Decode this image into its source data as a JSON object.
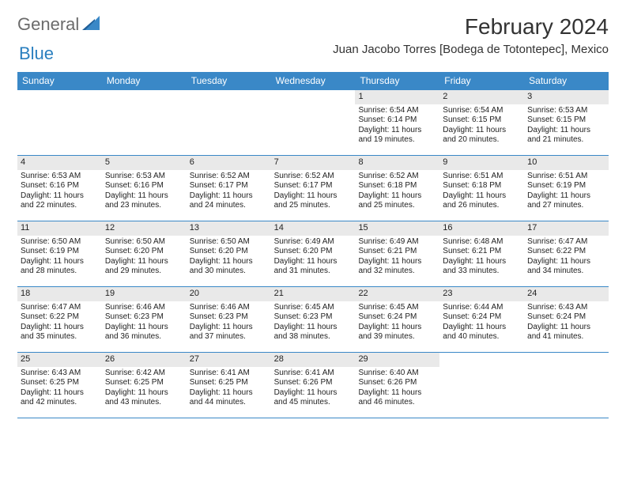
{
  "logo": {
    "textA": "General",
    "textB": "Blue"
  },
  "title": "February 2024",
  "location": "Juan Jacobo Torres [Bodega de Totontepec], Mexico",
  "colors": {
    "headerBg": "#3a88c7",
    "headerText": "#ffffff",
    "daynumBg": "#e9e9e9",
    "border": "#3a88c7"
  },
  "dayNames": [
    "Sunday",
    "Monday",
    "Tuesday",
    "Wednesday",
    "Thursday",
    "Friday",
    "Saturday"
  ],
  "weeks": [
    [
      null,
      null,
      null,
      null,
      {
        "n": "1",
        "sunrise": "Sunrise: 6:54 AM",
        "sunset": "Sunset: 6:14 PM",
        "day": "Daylight: 11 hours and 19 minutes."
      },
      {
        "n": "2",
        "sunrise": "Sunrise: 6:54 AM",
        "sunset": "Sunset: 6:15 PM",
        "day": "Daylight: 11 hours and 20 minutes."
      },
      {
        "n": "3",
        "sunrise": "Sunrise: 6:53 AM",
        "sunset": "Sunset: 6:15 PM",
        "day": "Daylight: 11 hours and 21 minutes."
      }
    ],
    [
      {
        "n": "4",
        "sunrise": "Sunrise: 6:53 AM",
        "sunset": "Sunset: 6:16 PM",
        "day": "Daylight: 11 hours and 22 minutes."
      },
      {
        "n": "5",
        "sunrise": "Sunrise: 6:53 AM",
        "sunset": "Sunset: 6:16 PM",
        "day": "Daylight: 11 hours and 23 minutes."
      },
      {
        "n": "6",
        "sunrise": "Sunrise: 6:52 AM",
        "sunset": "Sunset: 6:17 PM",
        "day": "Daylight: 11 hours and 24 minutes."
      },
      {
        "n": "7",
        "sunrise": "Sunrise: 6:52 AM",
        "sunset": "Sunset: 6:17 PM",
        "day": "Daylight: 11 hours and 25 minutes."
      },
      {
        "n": "8",
        "sunrise": "Sunrise: 6:52 AM",
        "sunset": "Sunset: 6:18 PM",
        "day": "Daylight: 11 hours and 25 minutes."
      },
      {
        "n": "9",
        "sunrise": "Sunrise: 6:51 AM",
        "sunset": "Sunset: 6:18 PM",
        "day": "Daylight: 11 hours and 26 minutes."
      },
      {
        "n": "10",
        "sunrise": "Sunrise: 6:51 AM",
        "sunset": "Sunset: 6:19 PM",
        "day": "Daylight: 11 hours and 27 minutes."
      }
    ],
    [
      {
        "n": "11",
        "sunrise": "Sunrise: 6:50 AM",
        "sunset": "Sunset: 6:19 PM",
        "day": "Daylight: 11 hours and 28 minutes."
      },
      {
        "n": "12",
        "sunrise": "Sunrise: 6:50 AM",
        "sunset": "Sunset: 6:20 PM",
        "day": "Daylight: 11 hours and 29 minutes."
      },
      {
        "n": "13",
        "sunrise": "Sunrise: 6:50 AM",
        "sunset": "Sunset: 6:20 PM",
        "day": "Daylight: 11 hours and 30 minutes."
      },
      {
        "n": "14",
        "sunrise": "Sunrise: 6:49 AM",
        "sunset": "Sunset: 6:20 PM",
        "day": "Daylight: 11 hours and 31 minutes."
      },
      {
        "n": "15",
        "sunrise": "Sunrise: 6:49 AM",
        "sunset": "Sunset: 6:21 PM",
        "day": "Daylight: 11 hours and 32 minutes."
      },
      {
        "n": "16",
        "sunrise": "Sunrise: 6:48 AM",
        "sunset": "Sunset: 6:21 PM",
        "day": "Daylight: 11 hours and 33 minutes."
      },
      {
        "n": "17",
        "sunrise": "Sunrise: 6:47 AM",
        "sunset": "Sunset: 6:22 PM",
        "day": "Daylight: 11 hours and 34 minutes."
      }
    ],
    [
      {
        "n": "18",
        "sunrise": "Sunrise: 6:47 AM",
        "sunset": "Sunset: 6:22 PM",
        "day": "Daylight: 11 hours and 35 minutes."
      },
      {
        "n": "19",
        "sunrise": "Sunrise: 6:46 AM",
        "sunset": "Sunset: 6:23 PM",
        "day": "Daylight: 11 hours and 36 minutes."
      },
      {
        "n": "20",
        "sunrise": "Sunrise: 6:46 AM",
        "sunset": "Sunset: 6:23 PM",
        "day": "Daylight: 11 hours and 37 minutes."
      },
      {
        "n": "21",
        "sunrise": "Sunrise: 6:45 AM",
        "sunset": "Sunset: 6:23 PM",
        "day": "Daylight: 11 hours and 38 minutes."
      },
      {
        "n": "22",
        "sunrise": "Sunrise: 6:45 AM",
        "sunset": "Sunset: 6:24 PM",
        "day": "Daylight: 11 hours and 39 minutes."
      },
      {
        "n": "23",
        "sunrise": "Sunrise: 6:44 AM",
        "sunset": "Sunset: 6:24 PM",
        "day": "Daylight: 11 hours and 40 minutes."
      },
      {
        "n": "24",
        "sunrise": "Sunrise: 6:43 AM",
        "sunset": "Sunset: 6:24 PM",
        "day": "Daylight: 11 hours and 41 minutes."
      }
    ],
    [
      {
        "n": "25",
        "sunrise": "Sunrise: 6:43 AM",
        "sunset": "Sunset: 6:25 PM",
        "day": "Daylight: 11 hours and 42 minutes."
      },
      {
        "n": "26",
        "sunrise": "Sunrise: 6:42 AM",
        "sunset": "Sunset: 6:25 PM",
        "day": "Daylight: 11 hours and 43 minutes."
      },
      {
        "n": "27",
        "sunrise": "Sunrise: 6:41 AM",
        "sunset": "Sunset: 6:25 PM",
        "day": "Daylight: 11 hours and 44 minutes."
      },
      {
        "n": "28",
        "sunrise": "Sunrise: 6:41 AM",
        "sunset": "Sunset: 6:26 PM",
        "day": "Daylight: 11 hours and 45 minutes."
      },
      {
        "n": "29",
        "sunrise": "Sunrise: 6:40 AM",
        "sunset": "Sunset: 6:26 PM",
        "day": "Daylight: 11 hours and 46 minutes."
      },
      null,
      null
    ]
  ]
}
